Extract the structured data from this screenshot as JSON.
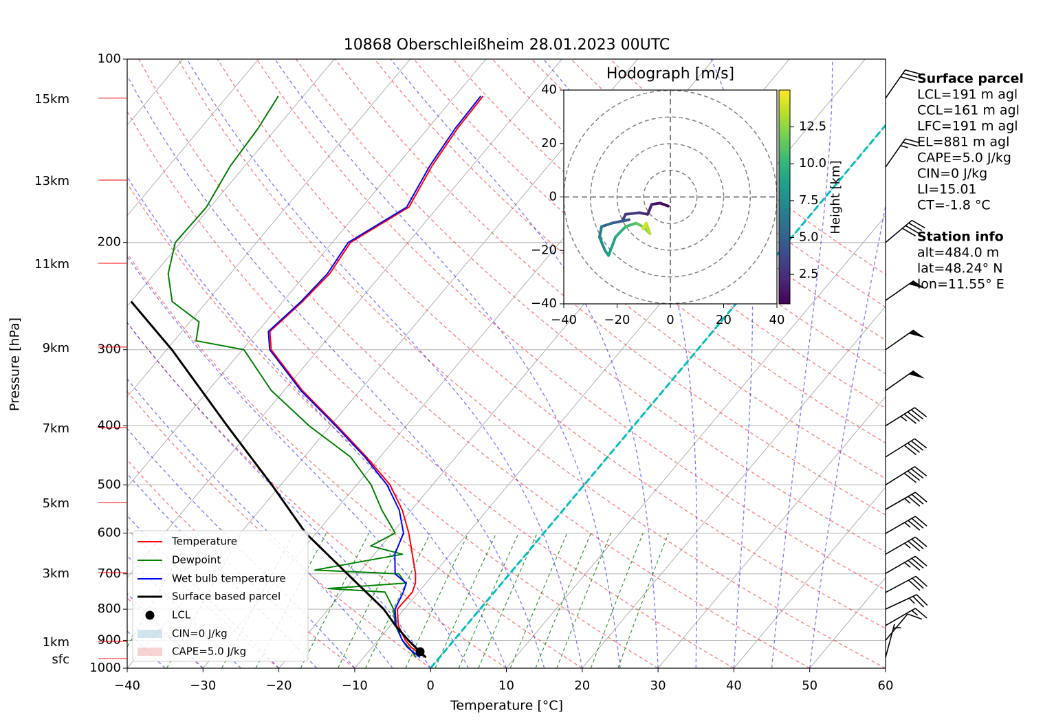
{
  "chart_data": {
    "type": "skewt",
    "title": "10868 Oberschleißheim 28.01.2023 00UTC",
    "xlabel": "Temperature [°C]",
    "ylabel": "Pressure [hPa]",
    "xlim": [
      -40,
      60
    ],
    "xticks": [
      {
        "value": -40,
        "label": "−40"
      },
      {
        "value": -30,
        "label": "−30"
      },
      {
        "value": -20,
        "label": "−20"
      },
      {
        "value": -10,
        "label": "−10"
      },
      0,
      10,
      20,
      30,
      40,
      50,
      60
    ],
    "ylim": [
      1000,
      100
    ],
    "yticks": [
      100,
      200,
      300,
      400,
      500,
      600,
      700,
      800,
      900,
      1000
    ],
    "log_y": true,
    "grid": true,
    "legend": "lower left",
    "series": [
      {
        "name": "Temperature",
        "color": "#ff0000",
        "width": 2,
        "pressure": [
          960,
          925,
          900,
          850,
          800,
          750,
          725,
          700,
          650,
          600,
          550,
          500,
          450,
          400,
          350,
          300,
          280,
          250,
          225,
          200,
          175,
          150,
          130,
          115
        ],
        "values": [
          -1.8,
          -4.8,
          -6.4,
          -9.0,
          -10.9,
          -10.8,
          -11.4,
          -12.4,
          -15.0,
          -17.8,
          -21.2,
          -25.6,
          -31.8,
          -39.1,
          -47.6,
          -56.2,
          -58.4,
          -57.4,
          -56.9,
          -57.6,
          -53.8,
          -55.3,
          -56.1,
          -56.3
        ]
      },
      {
        "name": "Dewpoint",
        "color": "#008000",
        "width": 2,
        "pressure": [
          960,
          925,
          900,
          850,
          800,
          750,
          740,
          725,
          700,
          690,
          650,
          630,
          600,
          550,
          500,
          450,
          400,
          350,
          300,
          290,
          270,
          250,
          225,
          200,
          175,
          150,
          130,
          115
        ],
        "values": [
          -3.1,
          -5.1,
          -6.8,
          -9.4,
          -11.4,
          -14.4,
          -22.3,
          -12.7,
          -14.6,
          -26.1,
          -16.3,
          -21.4,
          -19.6,
          -23.9,
          -28.1,
          -33.9,
          -42.8,
          -51.7,
          -59.8,
          -67.1,
          -68.8,
          -74.6,
          -78.2,
          -80.7,
          -80.5,
          -81.9,
          -82.4,
          -83.3
        ]
      },
      {
        "name": "Wet bulb temperature",
        "color": "#0000ff",
        "width": 2,
        "pressure": [
          960,
          925,
          900,
          850,
          800,
          750,
          725,
          700,
          650,
          600,
          550,
          500,
          450,
          400,
          350,
          300,
          280,
          250,
          225,
          200,
          175,
          150,
          130,
          115
        ],
        "values": [
          -2.6,
          -5.3,
          -6.8,
          -9.3,
          -11.2,
          -12.0,
          -12.6,
          -15.1,
          -17.3,
          -18.5,
          -21.6,
          -26.0,
          -32.0,
          -39.3,
          -47.8,
          -56.4,
          -58.6,
          -57.6,
          -57.2,
          -57.9,
          -54.1,
          -55.6,
          -56.4,
          -56.6
        ]
      },
      {
        "name": "Surface based parcel",
        "color": "#000000",
        "width": 3,
        "pressure": [
          960,
          940,
          900,
          850,
          800,
          700,
          600,
          500,
          400,
          300,
          250
        ],
        "values": [
          -1.8,
          -3.2,
          -6.0,
          -9.4,
          -12.7,
          -21.4,
          -31.4,
          -41.2,
          -53.6,
          -69.3,
          -80.0
        ]
      }
    ],
    "lcl": {
      "name": "LCL",
      "pressure": 939.6,
      "value": -3.2,
      "color": "#000000"
    },
    "cin_label": "CIN=0 J/kg",
    "cape_label": "CAPE=5.0 J/kg",
    "zero_isotherm": {
      "value": 0,
      "color": "#00bfbf"
    },
    "height_labels": [
      {
        "label": "15km",
        "pressure": 115.9
      },
      {
        "label": "13km",
        "pressure": 158
      },
      {
        "label": "11km",
        "pressure": 216.4
      },
      {
        "label": "9km",
        "pressure": 297
      },
      {
        "label": "7km",
        "pressure": 402.7
      },
      {
        "label": "5km",
        "pressure": 534.6
      },
      {
        "label": "3km",
        "pressure": 696.7
      },
      {
        "label": "1km",
        "pressure": 903.7
      },
      {
        "label": "sfc",
        "pressure": 964.3
      }
    ],
    "wind": {
      "pressure": [
        115.9,
        150.4,
        200,
        249,
        300,
        350,
        400,
        450,
        500,
        548.8,
        601,
        650,
        699,
        751,
        800,
        851,
        900,
        960
      ],
      "speed": [
        30,
        25,
        40,
        50,
        50,
        50,
        45,
        40,
        40,
        35,
        35,
        35,
        35,
        30,
        25,
        15,
        10,
        5
      ],
      "direction": [
        35,
        35,
        50,
        55,
        55,
        55,
        58,
        58,
        58,
        60,
        60,
        60,
        60,
        62,
        65,
        60,
        40,
        15
      ]
    }
  },
  "hodograph": {
    "title": "Hodograph [m/s]",
    "xlim": [
      -40,
      40
    ],
    "ylim": [
      -40,
      40
    ],
    "xticks": [
      {
        "value": -40,
        "label": "−40"
      },
      {
        "value": -20,
        "label": "−20"
      },
      0,
      20,
      40
    ],
    "yticks": [
      {
        "value": -40,
        "label": "−40"
      },
      {
        "value": -20,
        "label": "−20"
      },
      0,
      20,
      40
    ],
    "u": [
      -0.8,
      -3.9,
      -7.0,
      -8.5,
      -11.6,
      -16.8,
      -18.1,
      -15.5,
      -21.9,
      -25.8,
      -26.6,
      -24.5,
      -23.2,
      -20.6,
      -16.8,
      -12.9,
      -10.3,
      -7.7,
      -9.0,
      -10.3
    ],
    "v": [
      -3.4,
      -2.3,
      -2.8,
      -6.5,
      -5.9,
      -6.5,
      -9.0,
      -8.5,
      -9.8,
      -11.1,
      -15.0,
      -20.1,
      -21.9,
      -15.0,
      -11.1,
      -9.8,
      -11.1,
      -13.7,
      -9.8,
      -11.9
    ],
    "height": [
      0.5,
      1,
      1.5,
      2,
      2.5,
      3,
      3.5,
      4,
      5,
      6,
      7,
      8,
      8.5,
      9,
      10,
      11,
      12,
      13,
      14,
      14.5
    ],
    "colorbar": {
      "label": "Height [km]",
      "lim": [
        0.5,
        15
      ],
      "ticks": [
        2.5,
        {
          "value": 5,
          "label": "5.0"
        },
        7.5,
        {
          "value": 10,
          "label": "10.0"
        },
        12.5
      ]
    }
  },
  "info": {
    "sections": [
      {
        "title": "Surface parcel",
        "lines": [
          "LCL=191 m agl",
          "CCL=161 m agl",
          "LFC=191 m agl",
          "EL=881 m agl",
          "CAPE=5.0 J/kg",
          "CIN=0 J/kg",
          "LI=15.01",
          "CT=-1.8 °C"
        ]
      },
      {
        "title": "Station info",
        "lines": [
          "alt=484.0 m",
          "lat=48.24° N",
          "lon=11.55° E"
        ]
      }
    ]
  }
}
